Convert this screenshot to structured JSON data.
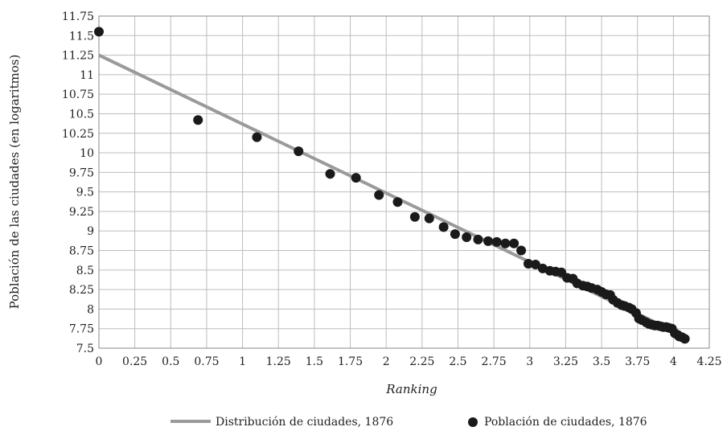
{
  "chart_data": {
    "type": "scatter",
    "xlabel": "Ranking",
    "ylabel": "Población de las ciudades  (en logaritmos)",
    "xlim": [
      0,
      4.25
    ],
    "ylim": [
      7.5,
      11.75
    ],
    "grid": true,
    "legend_position": "bottom",
    "x_ticks": [
      "0",
      "0.25",
      "0.5",
      "0.75",
      "1",
      "1.25",
      "1.5",
      "1.75",
      "2",
      "2.25",
      "2.5",
      "2.75",
      "3",
      "3.25",
      "3.5",
      "3.75",
      "4",
      "4.25"
    ],
    "y_ticks": [
      "11.75",
      "11.5",
      "11.25",
      "11",
      "10.75",
      "10.5",
      "10.25",
      "10",
      "9.75",
      "9.5",
      "9.25",
      "9",
      "8.75",
      "8.5",
      "8.25",
      "8",
      "7.75",
      "7.5"
    ],
    "colors": {
      "line": "#9a9a9a",
      "points": "#1a1a1a",
      "grid": "#bdbdbd"
    },
    "series": [
      {
        "name": "Distribución de ciudades, 1876",
        "kind": "line",
        "x": [
          0,
          4.08
        ],
        "y": [
          11.25,
          7.65
        ]
      },
      {
        "name": "Población de ciudades, 1876",
        "kind": "points",
        "x": [
          0.0,
          0.69,
          1.1,
          1.39,
          1.61,
          1.79,
          1.95,
          2.08,
          2.2,
          2.3,
          2.4,
          2.48,
          2.56,
          2.64,
          2.71,
          2.77,
          2.83,
          2.89,
          2.94,
          2.99,
          3.04,
          3.09,
          3.14,
          3.18,
          3.22,
          3.26,
          3.3,
          3.33,
          3.37,
          3.4,
          3.43,
          3.47,
          3.5,
          3.53,
          3.56,
          3.58,
          3.61,
          3.64,
          3.66,
          3.69,
          3.71,
          3.74,
          3.76,
          3.78,
          3.81,
          3.83,
          3.85,
          3.87,
          3.89,
          3.91,
          3.93,
          3.95,
          3.97,
          3.99,
          4.01,
          4.03,
          4.04,
          4.06,
          4.08
        ],
        "y": [
          11.55,
          10.42,
          10.2,
          10.02,
          9.73,
          9.68,
          9.46,
          9.37,
          9.18,
          9.16,
          9.05,
          8.96,
          8.92,
          8.89,
          8.87,
          8.86,
          8.84,
          8.84,
          8.75,
          8.58,
          8.57,
          8.52,
          8.49,
          8.48,
          8.47,
          8.4,
          8.39,
          8.33,
          8.3,
          8.29,
          8.27,
          8.25,
          8.22,
          8.19,
          8.18,
          8.12,
          8.08,
          8.05,
          8.04,
          8.02,
          8.0,
          7.95,
          7.88,
          7.86,
          7.83,
          7.81,
          7.8,
          7.79,
          7.79,
          7.78,
          7.77,
          7.77,
          7.76,
          7.75,
          7.69,
          7.67,
          7.65,
          7.64,
          7.62
        ]
      }
    ]
  }
}
